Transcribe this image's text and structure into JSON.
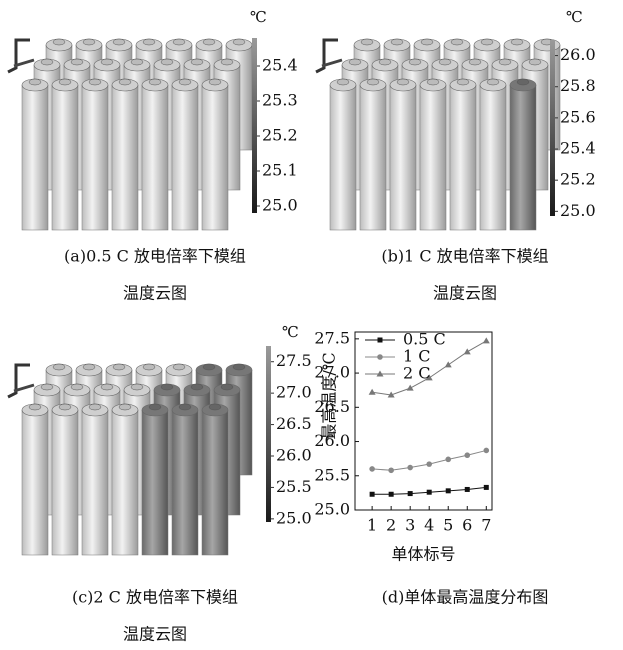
{
  "chart_data": [
    {
      "type": "colorbar",
      "unit": "℃",
      "caption": [
        "(a)0.5 C 放电倍率下模组",
        "温度云图"
      ],
      "ylim": [
        24.98,
        25.48
      ],
      "yticks": [
        {
          "value": 25,
          "label": "25.0"
        },
        25.1,
        25.2,
        25.3,
        25.4
      ]
    },
    {
      "type": "colorbar",
      "unit": "℃",
      "caption": [
        "(b)1 C 放电倍率下模组",
        "温度云图"
      ],
      "ylim": [
        24.97,
        26.1
      ],
      "yticks": [
        {
          "value": 25,
          "label": "25.0"
        },
        25.2,
        25.4,
        25.6,
        25.8,
        {
          "value": 26,
          "label": "26.0"
        }
      ]
    },
    {
      "type": "colorbar",
      "unit": "℃",
      "caption": [
        "(c)2 C 放电倍率下模组",
        "温度云图"
      ],
      "ylim": [
        24.95,
        27.75
      ],
      "yticks": [
        {
          "value": 25,
          "label": "25.0"
        },
        25.5,
        {
          "value": 26,
          "label": "26.0"
        },
        26.5,
        {
          "value": 27,
          "label": "27.0"
        },
        27.5
      ]
    },
    {
      "type": "line",
      "caption": "(d)单体最高温度分布图",
      "xlabel": "单体标号",
      "ylabel": "最高温度/℃",
      "x": [
        1,
        2,
        3,
        4,
        5,
        6,
        7
      ],
      "xlim": [
        0.1,
        7.3
      ],
      "xticks": [
        1,
        2,
        3,
        4,
        5,
        6,
        7
      ],
      "ylim": [
        25,
        27.6
      ],
      "yticks": [
        {
          "value": 25,
          "label": "25.0"
        },
        25.5,
        {
          "value": 26,
          "label": "26.0"
        },
        26.5,
        {
          "value": 27,
          "label": "27.0"
        },
        27.5
      ],
      "legend": "upper left",
      "series": [
        {
          "name": "0.5 C",
          "color": "#111111",
          "marker": "square",
          "values": [
            25.23,
            25.23,
            25.24,
            25.26,
            25.28,
            25.3,
            25.33
          ]
        },
        {
          "name": "1 C",
          "color": "#888888",
          "marker": "circle",
          "values": [
            25.6,
            25.58,
            25.62,
            25.67,
            25.74,
            25.8,
            25.87
          ]
        },
        {
          "name": "2 C",
          "color": "#777777",
          "marker": "triangle",
          "values": [
            26.72,
            26.68,
            26.78,
            26.93,
            27.12,
            27.31,
            27.47
          ]
        }
      ]
    }
  ]
}
